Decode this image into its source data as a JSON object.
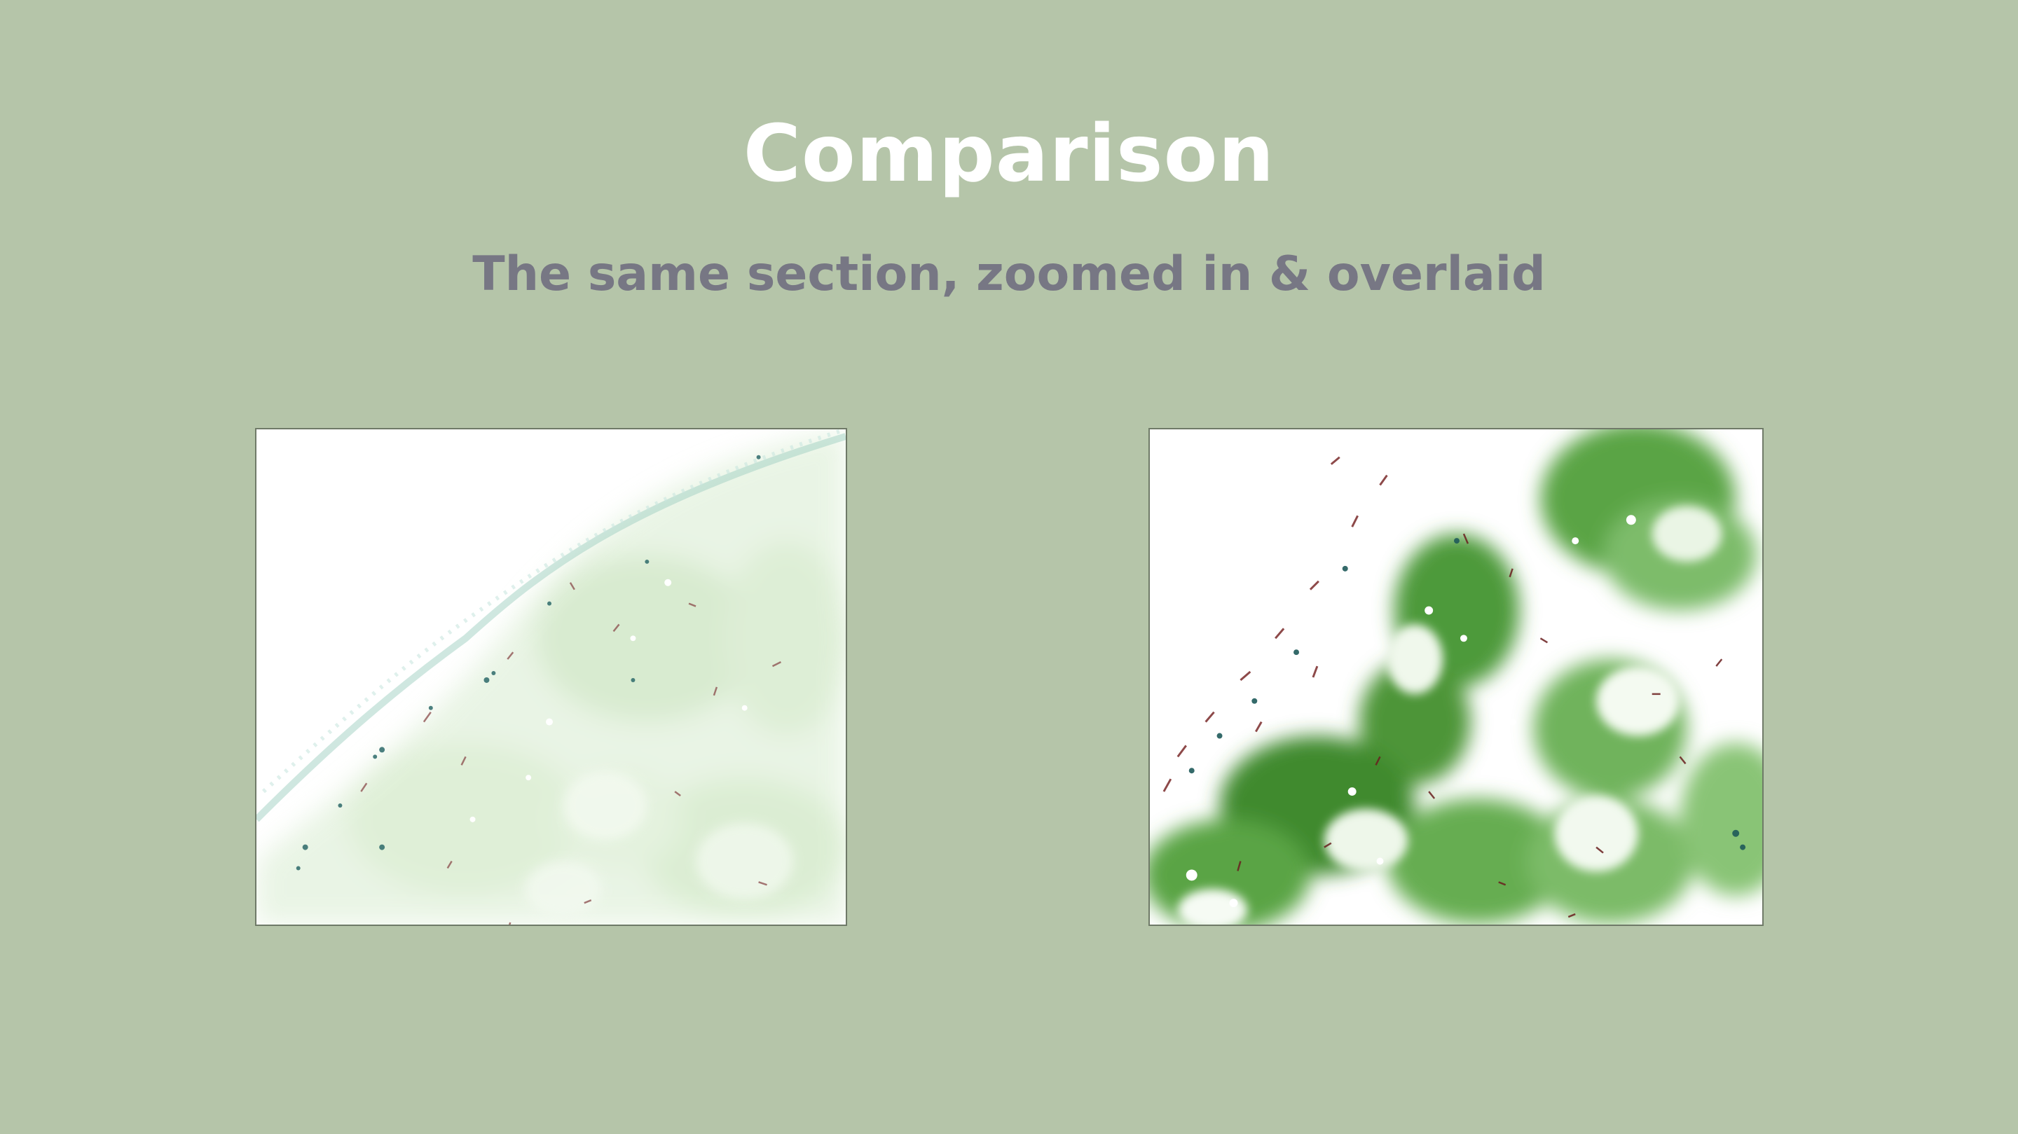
{
  "slide": {
    "title": "Comparison",
    "subtitle": "The same section, zoomed in & overlaid"
  },
  "images": {
    "left": {
      "kind": "micrograph",
      "stain_colors": [
        "#8fc983",
        "#2f6f6f",
        "#7a3a3a"
      ],
      "intensity": "faint"
    },
    "right": {
      "kind": "micrograph",
      "stain_colors": [
        "#4f9a3a",
        "#2f6f6f",
        "#5a1f1f"
      ],
      "intensity": "strong"
    }
  },
  "colors": {
    "background": "#b5c5a9",
    "title": "#ffffff",
    "subtitle": "#777784"
  }
}
